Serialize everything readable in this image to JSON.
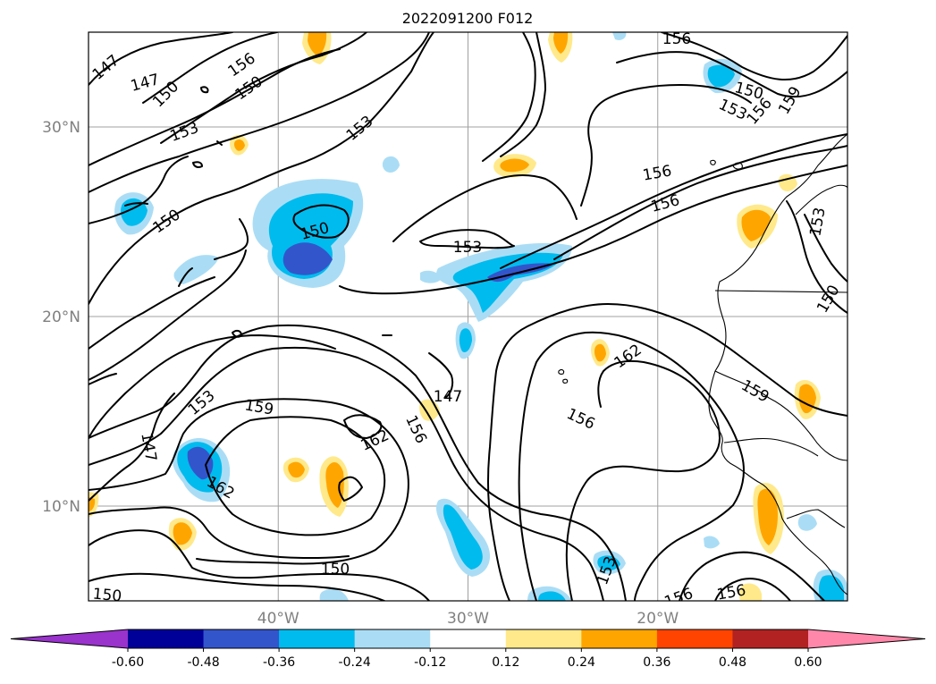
{
  "title": "2022091200 F012",
  "map": {
    "lon_range": [
      -50,
      -10
    ],
    "lat_range": [
      5,
      35
    ],
    "lon_ticks": [
      {
        "value": -40,
        "label": "40°W"
      },
      {
        "value": -30,
        "label": "30°W"
      },
      {
        "value": -20,
        "label": "20°W"
      }
    ],
    "lat_ticks": [
      {
        "value": 30,
        "label": "30°N"
      },
      {
        "value": 20,
        "label": "20°N"
      },
      {
        "value": 10,
        "label": "10°N"
      }
    ],
    "grid": true,
    "contour_labels": [
      "147",
      "147",
      "150",
      "150",
      "153",
      "156",
      "150",
      "153",
      "150",
      "153",
      "156",
      "159",
      "156",
      "153",
      "150",
      "153",
      "150",
      "156",
      "156",
      "153",
      "159",
      "147",
      "162",
      "147",
      "162",
      "156",
      "162",
      "159",
      "156",
      "153",
      "150",
      "150",
      "156",
      "156"
    ]
  },
  "colorbar": {
    "ticks": [
      "-0.60",
      "-0.48",
      "-0.36",
      "-0.24",
      "-0.12",
      "0.12",
      "0.24",
      "0.36",
      "0.48",
      "0.60"
    ],
    "colors": [
      "#9933cc",
      "#000099",
      "#3355cc",
      "#00bbee",
      "#aaddf5",
      "#ffffff",
      "#ffe98a",
      "#ffa500",
      "#ff4400",
      "#b22222",
      "#ff88aa"
    ],
    "extend": "both"
  }
}
